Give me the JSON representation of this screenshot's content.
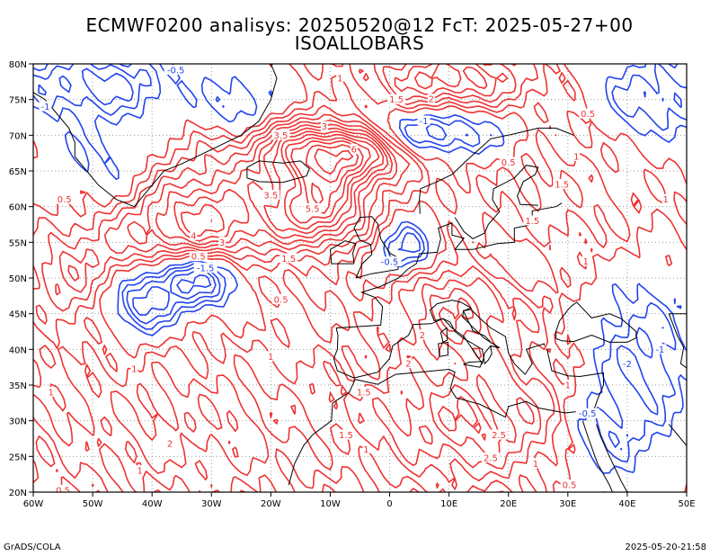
{
  "title": {
    "line1": "ECMWF0200 analisys: 20250520@12 FcT: 2025-05-27+00",
    "line2": "ISOALLOBARS"
  },
  "map": {
    "projection": "lat-lon",
    "lon_range": [
      -60,
      50
    ],
    "lat_range": [
      20,
      80
    ],
    "lon_ticks": [
      "60W",
      "50W",
      "40W",
      "30W",
      "20W",
      "10W",
      "0",
      "10E",
      "20E",
      "30E",
      "40E",
      "50E"
    ],
    "lat_ticks": [
      "20N",
      "25N",
      "30N",
      "35N",
      "40N",
      "45N",
      "50N",
      "55N",
      "60N",
      "65N",
      "70N",
      "75N",
      "80N"
    ],
    "grid": "dotted",
    "colors": {
      "positive_contours": "#ee3333",
      "negative_contours": "#2244ee",
      "coastlines": "#000000",
      "label_box": "#ffffff"
    },
    "contour_labels_sample": [
      "0.5",
      "1",
      "1.5",
      "2",
      "2.5",
      "3",
      "3.5",
      "4.5",
      "6.5",
      "-0.5",
      "-1",
      "-1.5",
      "-2.5",
      "-3.5",
      "-4.5"
    ]
  },
  "footer": {
    "left": "GrADS/COLA",
    "right": "2025-05-20-21:58"
  }
}
